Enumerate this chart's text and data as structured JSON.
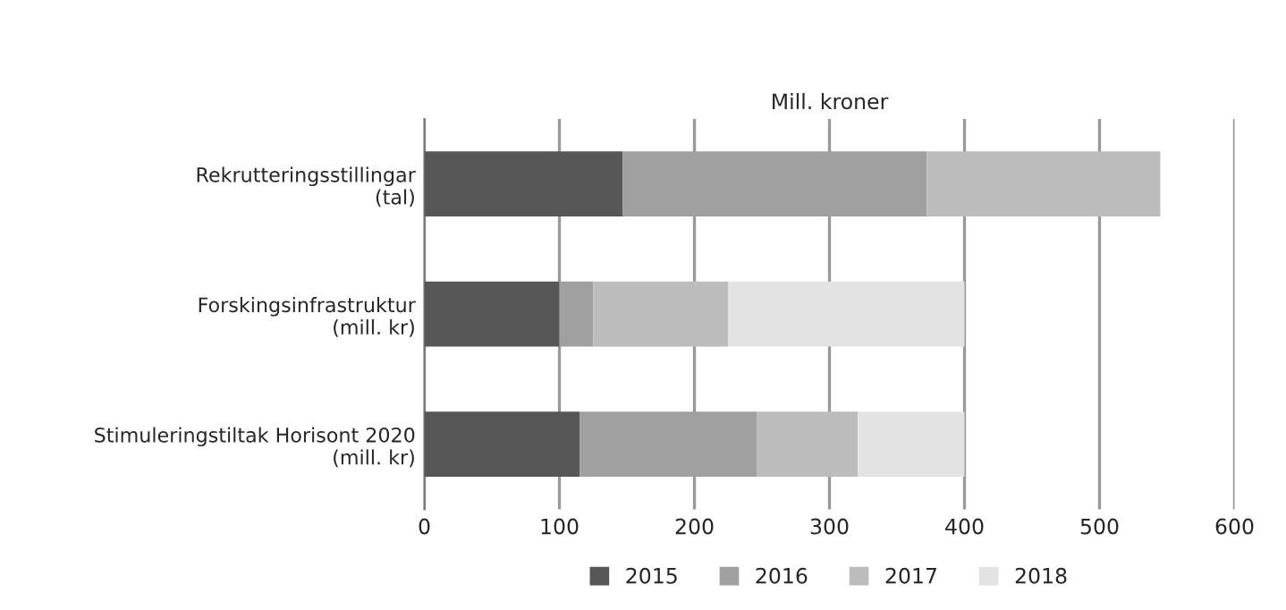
{
  "chart_data": {
    "type": "bar",
    "orientation": "horizontal",
    "stacked": true,
    "xlabel": "Mill. kroner",
    "categories": [
      "Rekrutteringsstillingar\n(tal)",
      "Forskingsinfrastruktur\n(mill. kr)",
      "Stimuleringstiltak Horisont 2020\n(mill. kr)"
    ],
    "series": [
      {
        "name": "2015",
        "color": "#575757",
        "values": [
          147,
          100,
          115
        ]
      },
      {
        "name": "2016",
        "color": "#a0a0a0",
        "values": [
          225,
          25,
          131
        ]
      },
      {
        "name": "2017",
        "color": "#bcbcbc",
        "values": [
          173,
          100,
          75
        ]
      },
      {
        "name": "2018",
        "color": "#e3e3e3",
        "values": [
          null,
          175,
          79
        ]
      }
    ],
    "xlim": [
      0,
      600
    ],
    "xticks": [
      0,
      100,
      200,
      300,
      400,
      500,
      600
    ],
    "grid": "x",
    "legend": "bottom"
  }
}
